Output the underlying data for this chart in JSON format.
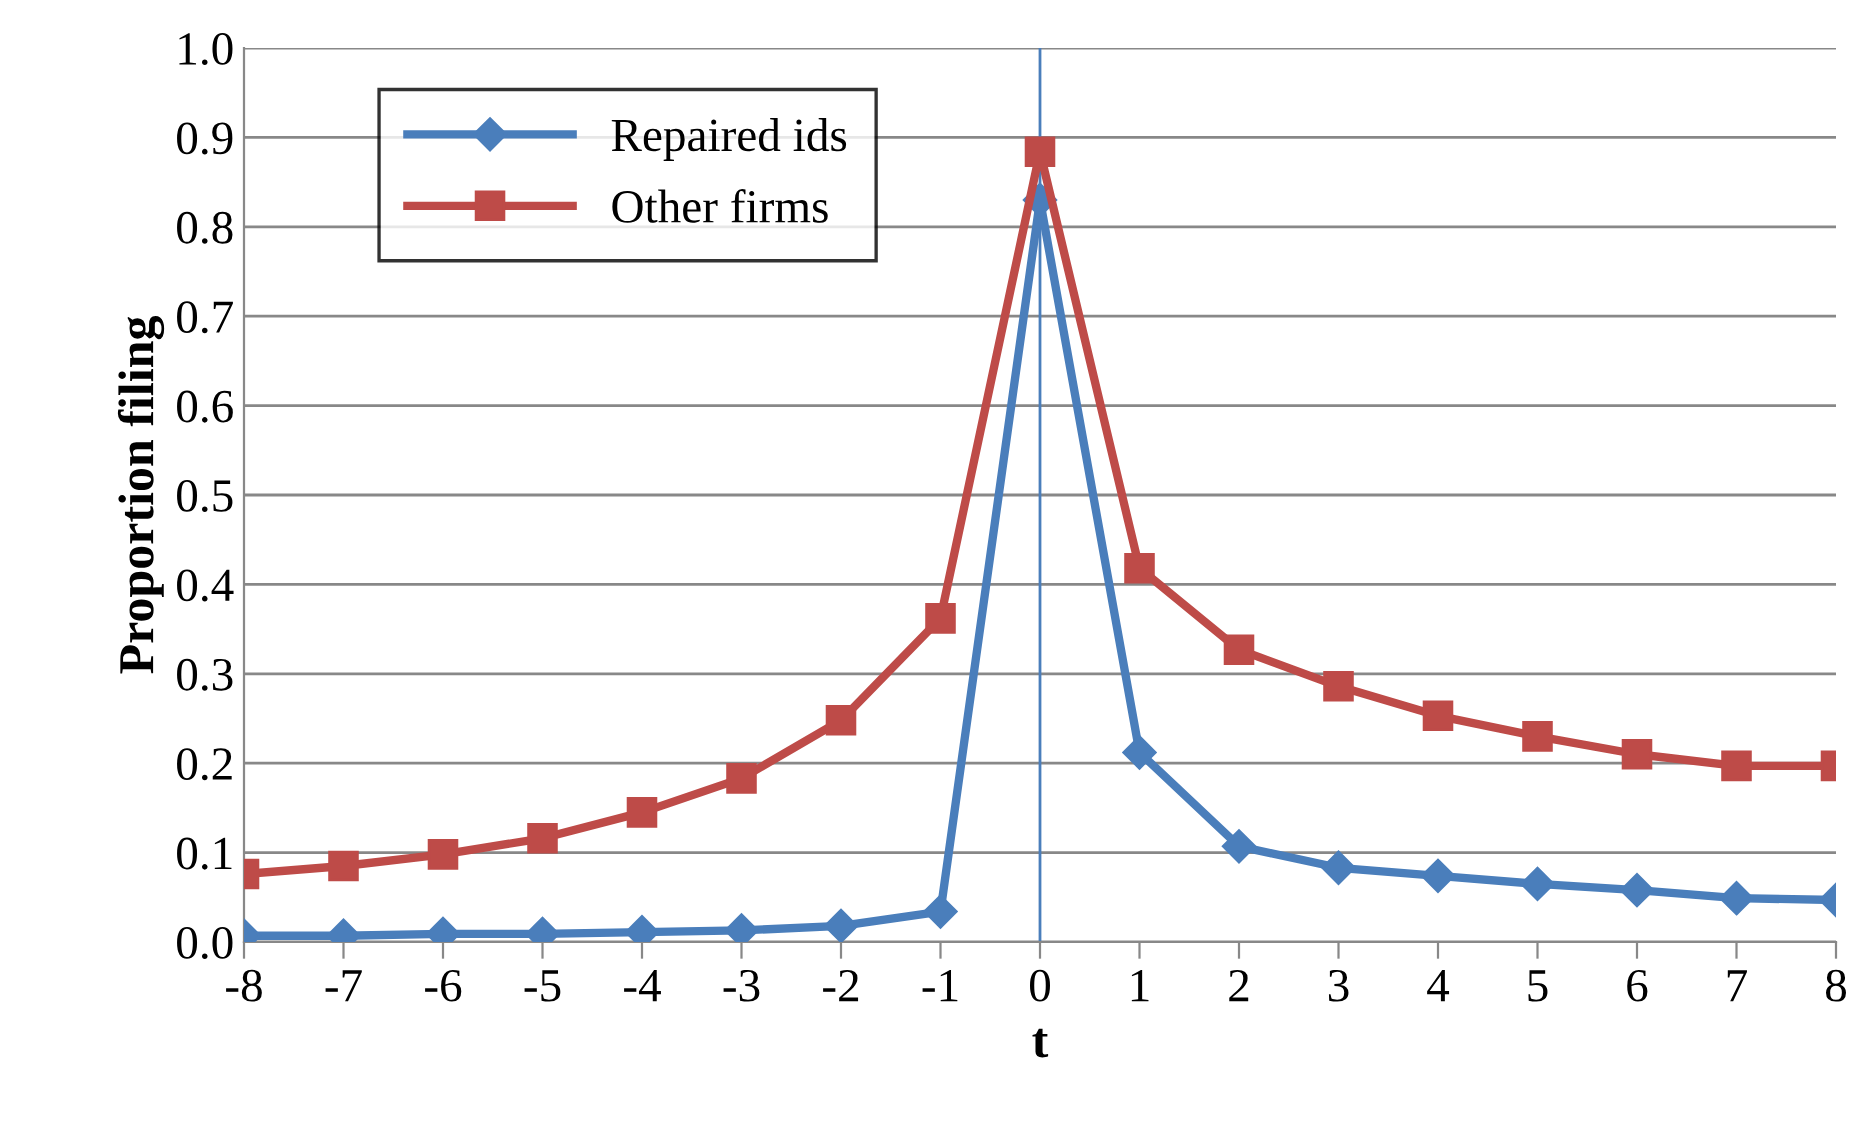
{
  "chart_data": {
    "type": "line",
    "xlabel": "t",
    "ylabel": "Proportion filing",
    "x": [
      -8,
      -7,
      -6,
      -5,
      -4,
      -3,
      -2,
      -1,
      0,
      1,
      2,
      3,
      4,
      5,
      6,
      7,
      8
    ],
    "series": [
      {
        "name": "Repaired ids",
        "color": "#4a7ebb",
        "marker": "diamond",
        "values": [
          0.007,
          0.007,
          0.009,
          0.009,
          0.011,
          0.013,
          0.018,
          0.034,
          0.83,
          0.212,
          0.107,
          0.083,
          0.074,
          0.065,
          0.058,
          0.049,
          0.047
        ]
      },
      {
        "name": "Other firms",
        "color": "#be4b48",
        "marker": "square",
        "values": [
          0.076,
          0.085,
          0.098,
          0.116,
          0.145,
          0.183,
          0.248,
          0.362,
          0.884,
          0.418,
          0.327,
          0.286,
          0.253,
          0.23,
          0.21,
          0.197,
          0.197
        ]
      }
    ],
    "xlim": [
      -8,
      8
    ],
    "xticks": [
      -8,
      -7,
      -6,
      -5,
      -4,
      -3,
      -2,
      -1,
      0,
      1,
      2,
      3,
      4,
      5,
      6,
      7,
      8
    ],
    "ylim": [
      0,
      1
    ],
    "yticks": [
      {
        "value": 0,
        "label": "0.0"
      },
      {
        "value": 0.1,
        "label": "0.1"
      },
      {
        "value": 0.2,
        "label": "0.2"
      },
      {
        "value": 0.3,
        "label": "0.3"
      },
      {
        "value": 0.4,
        "label": "0.4"
      },
      {
        "value": 0.5,
        "label": "0.5"
      },
      {
        "value": 0.6,
        "label": "0.6"
      },
      {
        "value": 0.7,
        "label": "0.7"
      },
      {
        "value": 0.8,
        "label": "0.8"
      },
      {
        "value": 0.9,
        "label": "0.9"
      },
      {
        "value": 1,
        "label": "1.0"
      }
    ],
    "ref_lines": [
      {
        "axis": "x",
        "value": 0,
        "color": "#4a7ebb"
      }
    ],
    "grid": "y",
    "legend": "top left",
    "line_style": "solid"
  }
}
